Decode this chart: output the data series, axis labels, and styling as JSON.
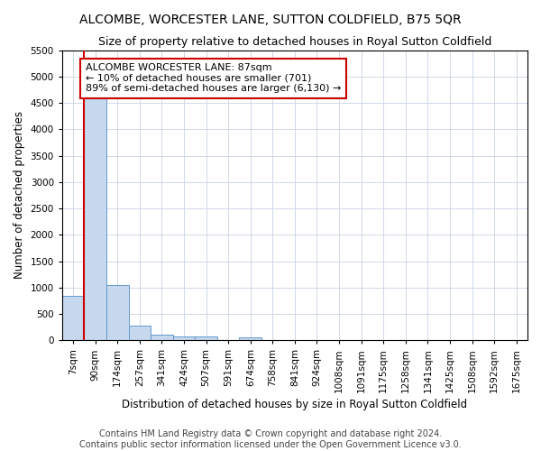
{
  "title": "ALCOMBE, WORCESTER LANE, SUTTON COLDFIELD, B75 5QR",
  "subtitle": "Size of property relative to detached houses in Royal Sutton Coldfield",
  "xlabel": "Distribution of detached houses by size in Royal Sutton Coldfield",
  "ylabel": "Number of detached properties",
  "footer_line1": "Contains HM Land Registry data © Crown copyright and database right 2024.",
  "footer_line2": "Contains public sector information licensed under the Open Government Licence v3.0.",
  "categories": [
    "7sqm",
    "90sqm",
    "174sqm",
    "257sqm",
    "341sqm",
    "424sqm",
    "507sqm",
    "591sqm",
    "674sqm",
    "758sqm",
    "841sqm",
    "924sqm",
    "1008sqm",
    "1091sqm",
    "1175sqm",
    "1258sqm",
    "1341sqm",
    "1425sqm",
    "1508sqm",
    "1592sqm",
    "1675sqm"
  ],
  "values": [
    850,
    4600,
    1050,
    280,
    100,
    80,
    70,
    0,
    50,
    0,
    0,
    0,
    0,
    0,
    0,
    0,
    0,
    0,
    0,
    0,
    0
  ],
  "bar_color": "#c5d8ee",
  "bar_edge_color": "#6699cc",
  "grid_color": "#d0d8e8",
  "property_line_color": "#cc0000",
  "annotation_text": "ALCOMBE WORCESTER LANE: 87sqm\n← 10% of detached houses are smaller (701)\n89% of semi-detached houses are larger (6,130) →",
  "annotation_box_color": "white",
  "annotation_box_edge_color": "#cc0000",
  "ylim": [
    0,
    5500
  ],
  "yticks": [
    0,
    500,
    1000,
    1500,
    2000,
    2500,
    3000,
    3500,
    4000,
    4500,
    5000,
    5500
  ],
  "title_fontsize": 10,
  "subtitle_fontsize": 9,
  "axis_label_fontsize": 8.5,
  "tick_fontsize": 7.5,
  "annotation_fontsize": 8,
  "footer_fontsize": 7
}
